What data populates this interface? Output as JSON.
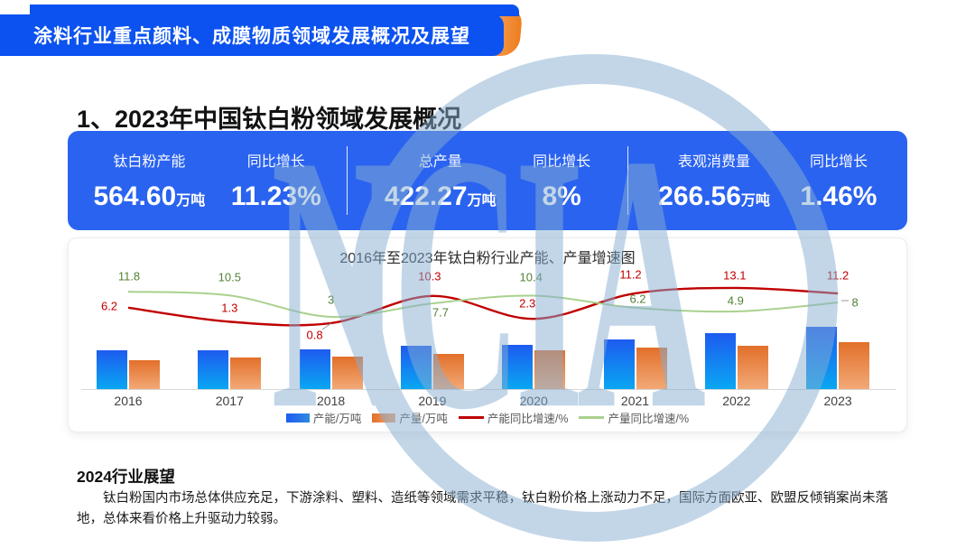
{
  "banner": {
    "title": "涂料行业重点颜料、成膜物质领域发展概况及展望"
  },
  "page_title": "1、2023年中国钛白粉领域发展概况",
  "watermark": {
    "text": "NCIA"
  },
  "stats": [
    {
      "label": "钛白粉产能",
      "value": "564.60",
      "unit": "万吨",
      "growth_label": "同比增长",
      "growth": "11.23%"
    },
    {
      "label": "总产量",
      "value": "422.27",
      "unit": "万吨",
      "growth_label": "同比增长",
      "growth": "8%"
    },
    {
      "label": "表观消费量",
      "value": "266.56",
      "unit": "万吨",
      "growth_label": "同比增长",
      "growth": "1.46%"
    }
  ],
  "chart_data": {
    "type": "combo-bar-line",
    "title": "2016年至2023年钛白粉行业产能、产量增速图",
    "categories": [
      "2016",
      "2017",
      "2018",
      "2019",
      "2020",
      "2021",
      "2022",
      "2023"
    ],
    "bar_values_estimated": true,
    "series": [
      {
        "name": "产能/万吨",
        "type": "bar",
        "color_top": "#1e5bf0",
        "color_bottom": "#09a7f2",
        "values": [
          350,
          355,
          358,
          395,
          404,
          449,
          508,
          564.6
        ]
      },
      {
        "name": "产量/万吨",
        "type": "bar",
        "color_top": "#e2702a",
        "color_bottom": "#f2a977",
        "values": [
          259,
          287,
          295,
          318,
          351,
          373,
          391,
          422.3
        ]
      },
      {
        "name": "产能同比增速/%",
        "type": "line",
        "color": "#c00000",
        "label_color": "#c00000",
        "values": [
          6.2,
          1.3,
          0.8,
          10.3,
          2.3,
          11.2,
          13.1,
          11.2
        ]
      },
      {
        "name": "产量同比增速/%",
        "type": "line",
        "color": "#a9d18e",
        "label_color": "#538135",
        "values": [
          11.8,
          10.5,
          3,
          7.7,
          10.4,
          6.2,
          4.9,
          8
        ]
      }
    ],
    "legend_position": "bottom",
    "grid": false
  },
  "outlook": {
    "heading": "2024行业展望",
    "body": "钛白粉国内市场总体供应充足，下游涂料、塑料、造纸等领域需求平稳，钛白粉价格上涨动力不足，国际方面欧亚、欧盟反倾销案尚未落地，总体来看价格上升驱动力较弱。"
  },
  "colors": {
    "banner_blue": "#0b52f0",
    "banner_accent_orange": "#f08329",
    "stats_blue": "#2a63f0",
    "line_capacity_red": "#c00000",
    "line_output_green": "#a9d18e",
    "watermark_blue": "#86aed2"
  }
}
